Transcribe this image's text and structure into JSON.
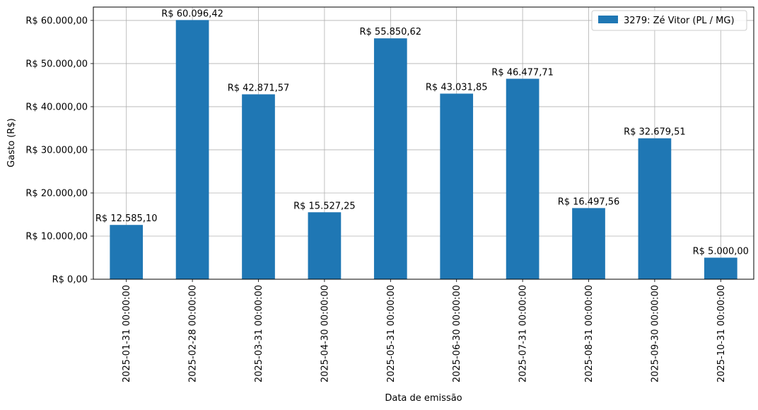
{
  "chart_data": {
    "type": "bar",
    "title": "",
    "xlabel": "Data de emissão",
    "ylabel": "Gasto (R$)",
    "categories": [
      "2025-01-31 00:00:00",
      "2025-02-28 00:00:00",
      "2025-03-31 00:00:00",
      "2025-04-30 00:00:00",
      "2025-05-31 00:00:00",
      "2025-06-30 00:00:00",
      "2025-07-31 00:00:00",
      "2025-08-31 00:00:00",
      "2025-09-30 00:00:00",
      "2025-10-31 00:00:00"
    ],
    "series": [
      {
        "name": "3279: Zé Vitor (PL / MG)",
        "color": "#1f77b4",
        "values": [
          12585.1,
          60096.42,
          42871.57,
          15527.25,
          55850.62,
          43031.85,
          46477.71,
          16497.56,
          32679.51,
          5000.0
        ],
        "value_labels": [
          "R$ 12.585,10",
          "R$ 60.096,42",
          "R$ 42.871,57",
          "R$ 15.527,25",
          "R$ 55.850,62",
          "R$ 43.031,85",
          "R$ 46.477,71",
          "R$ 16.497,56",
          "R$ 32.679,51",
          "R$ 5.000,00"
        ]
      }
    ],
    "yticks": [
      0,
      10000,
      20000,
      30000,
      40000,
      50000,
      60000
    ],
    "ytick_labels": [
      "R$ 0,00",
      "R$ 10.000,00",
      "R$ 20.000,00",
      "R$ 30.000,00",
      "R$ 40.000,00",
      "R$ 50.000,00",
      "R$ 60.000,00"
    ],
    "ylim": [
      0,
      63101
    ],
    "grid": true,
    "legend": "top-right"
  }
}
